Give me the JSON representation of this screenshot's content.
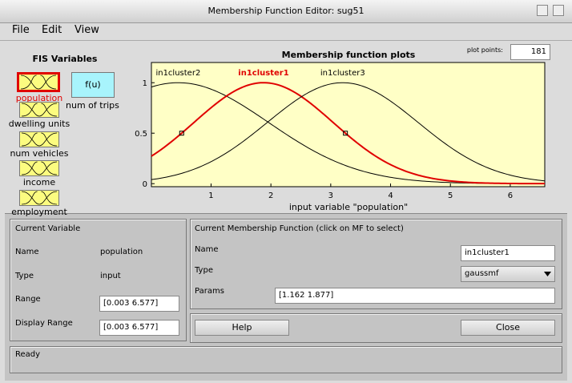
{
  "window": {
    "title": "Membership Function Editor: sug51"
  },
  "menu": [
    "File",
    "Edit",
    "View"
  ],
  "fis_variables": {
    "title": "FIS Variables",
    "inputs": [
      "population",
      "dwelling units",
      "num vehicles",
      "income",
      "employment"
    ],
    "output": {
      "label": "f(u)",
      "name": "num of trips"
    }
  },
  "chart_data": {
    "type": "gaussmf",
    "title": "Membership function plots",
    "x_label": "input variable \"population\"",
    "plot_points_label": "plot points:",
    "plot_points": 181,
    "xlim": [
      0.003,
      6.577
    ],
    "ylim": [
      -0.03,
      1.2
    ],
    "xticks": [
      1,
      2,
      3,
      4,
      5,
      6
    ],
    "yticks": [
      0,
      0.5,
      1
    ],
    "series": [
      {
        "name": "in1cluster2",
        "color": "#000000",
        "params": [
          1.51,
          0.45
        ],
        "selected": false
      },
      {
        "name": "in1cluster1",
        "color": "#e00000",
        "params": [
          1.162,
          1.877
        ],
        "selected": true
      },
      {
        "name": "in1cluster3",
        "color": "#000000",
        "params": [
          1.26,
          3.2
        ],
        "selected": false
      }
    ]
  },
  "current_variable": {
    "title": "Current Variable",
    "name_label": "Name",
    "name": "population",
    "type_label": "Type",
    "type": "input",
    "range_label": "Range",
    "range": "[0.003 6.577]",
    "display_range_label": "Display Range",
    "display_range": "[0.003 6.577]"
  },
  "current_mf": {
    "title": "Current Membership Function (click on MF to select)",
    "name_label": "Name",
    "name": "in1cluster1",
    "type_label": "Type",
    "type": "gaussmf",
    "params_label": "Params",
    "params": "[1.162 1.877]"
  },
  "buttons": {
    "help": "Help",
    "close": "Close"
  },
  "status": "Ready"
}
